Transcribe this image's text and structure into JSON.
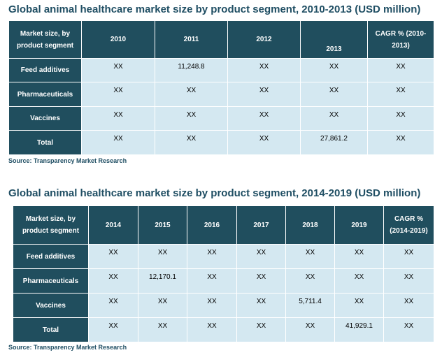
{
  "table1": {
    "title": "Global animal healthcare market size by product segment, 2010-2013 (USD million)",
    "headers": [
      "Market size, by product segment",
      "2010",
      "2011",
      "2012",
      "2013",
      "CAGR % (2010-2013)"
    ],
    "rows": [
      {
        "label": "Feed additives",
        "values": [
          "XX",
          "11,248.8",
          "XX",
          "XX",
          "XX"
        ]
      },
      {
        "label": "Pharmaceuticals",
        "values": [
          "XX",
          "XX",
          "XX",
          "XX",
          "XX"
        ]
      },
      {
        "label": "Vaccines",
        "values": [
          "XX",
          "XX",
          "XX",
          "XX",
          "XX"
        ]
      },
      {
        "label": "Total",
        "values": [
          "XX",
          "XX",
          "XX",
          "27,861.2",
          "XX"
        ]
      }
    ],
    "source": "Source: Transparency Market Research"
  },
  "table2": {
    "title": "Global animal healthcare market size by product segment, 2014-2019 (USD million)",
    "headers": [
      "Market size, by product segment",
      "2014",
      "2015",
      "2016",
      "2017",
      "2018",
      "2019",
      "CAGR % (2014-2019)"
    ],
    "rows": [
      {
        "label": "Feed additives",
        "values": [
          "XX",
          "XX",
          "XX",
          "XX",
          "XX",
          "XX",
          "XX"
        ]
      },
      {
        "label": "Pharmaceuticals",
        "values": [
          "XX",
          "12,170.1",
          "XX",
          "XX",
          "XX",
          "XX",
          "XX"
        ]
      },
      {
        "label": "Vaccines",
        "values": [
          "XX",
          "XX",
          "XX",
          "XX",
          "5,711.4",
          "XX",
          "XX"
        ]
      },
      {
        "label": "Total",
        "values": [
          "XX",
          "XX",
          "XX",
          "XX",
          "XX",
          "41,929.1",
          "XX"
        ]
      }
    ],
    "source": "Source: Transparency Market Research"
  }
}
